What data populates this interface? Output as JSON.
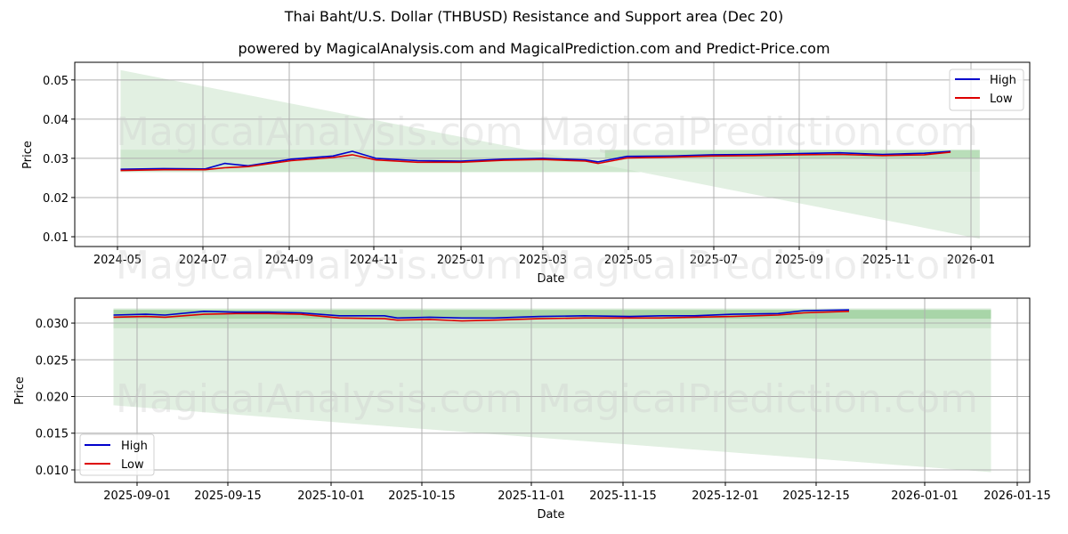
{
  "header": {
    "title": "Thai Baht/U.S. Dollar (THBUSD) Resistance and Support area (Dec 20)",
    "subtitle": "powered by MagicalAnalysis.com and MagicalPrediction.com and Predict-Price.com"
  },
  "watermarks": [
    "MagicalAnalysis.com",
    "MagicalPrediction.com"
  ],
  "colors": {
    "high": "#0000cc",
    "low": "#dd0000",
    "band_light": "#e2f0e2",
    "band_mid": "#bfe0bf",
    "band_dark": "#8fc98f",
    "grid": "#b0b0b0"
  },
  "chart_data": [
    {
      "type": "line",
      "title": "Thai Baht/U.S. Dollar (THBUSD) Resistance and Support area (Dec 20)",
      "xlabel": "Date",
      "ylabel": "Price",
      "ylim": [
        0.0075,
        0.0545
      ],
      "yticks": [
        "0.01",
        "0.02",
        "0.03",
        "0.04",
        "0.05"
      ],
      "yvals": [
        0.01,
        0.02,
        0.03,
        0.04,
        0.05
      ],
      "xticks": [
        "2024-05",
        "2024-07",
        "2024-09",
        "2024-11",
        "2025-01",
        "2025-03",
        "2025-05",
        "2025-07",
        "2025-09",
        "2025-11",
        "2026-01"
      ],
      "grid": true,
      "legend_position": "upper right",
      "legend": [
        "High",
        "Low"
      ],
      "x": [
        "2024-05",
        "2024-06",
        "2024-07",
        "2024-07-15",
        "2024-08",
        "2024-09",
        "2024-10",
        "2024-10-15",
        "2024-11",
        "2024-12",
        "2025-01",
        "2025-02",
        "2025-03",
        "2025-04",
        "2025-04-10",
        "2025-05",
        "2025-06",
        "2025-07",
        "2025-08",
        "2025-09",
        "2025-10",
        "2025-11",
        "2025-12",
        "2025-12-20"
      ],
      "series": [
        {
          "name": "High",
          "values": [
            0.0272,
            0.0274,
            0.0273,
            0.0287,
            0.0281,
            0.0298,
            0.0306,
            0.0318,
            0.03,
            0.0294,
            0.0293,
            0.0298,
            0.03,
            0.0296,
            0.0291,
            0.0305,
            0.0306,
            0.0309,
            0.031,
            0.0312,
            0.0314,
            0.031,
            0.0313,
            0.0318
          ]
        },
        {
          "name": "Low",
          "values": [
            0.0269,
            0.0271,
            0.0271,
            0.0276,
            0.0279,
            0.0294,
            0.0302,
            0.0309,
            0.0296,
            0.029,
            0.029,
            0.0295,
            0.0297,
            0.0293,
            0.0287,
            0.0301,
            0.0303,
            0.0306,
            0.0307,
            0.0309,
            0.031,
            0.0307,
            0.0309,
            0.0316
          ]
        }
      ],
      "bands": {
        "outer_upper": {
          "x": [
            "2024-05",
            "2026-01-10"
          ],
          "values": [
            0.0525,
            0.0095
          ]
        },
        "support_area": [
          0.0265,
          0.0322
        ]
      }
    },
    {
      "type": "line",
      "xlabel": "Date",
      "ylabel": "Price",
      "ylim": [
        0.0083,
        0.0334
      ],
      "yticks": [
        "0.010",
        "0.015",
        "0.020",
        "0.025",
        "0.030"
      ],
      "yvals": [
        0.01,
        0.015,
        0.02,
        0.025,
        0.03
      ],
      "xticks": [
        "2025-09-01",
        "2025-09-15",
        "2025-10-01",
        "2025-10-15",
        "2025-11-01",
        "2025-11-15",
        "2025-12-01",
        "2025-12-15",
        "2026-01-01",
        "2026-01-15"
      ],
      "grid": true,
      "legend_position": "lower left",
      "legend": [
        "High",
        "Low"
      ],
      "x": [
        "2025-08-27",
        "2025-09-01",
        "2025-09-04",
        "2025-09-10",
        "2025-09-15",
        "2025-09-20",
        "2025-09-25",
        "2025-10-01",
        "2025-10-08",
        "2025-10-10",
        "2025-10-15",
        "2025-10-20",
        "2025-10-25",
        "2025-11-01",
        "2025-11-08",
        "2025-11-15",
        "2025-11-20",
        "2025-11-25",
        "2025-12-01",
        "2025-12-08",
        "2025-12-12",
        "2025-12-19"
      ],
      "series": [
        {
          "name": "High",
          "values": [
            0.0311,
            0.0312,
            0.0311,
            0.0316,
            0.0315,
            0.0315,
            0.0314,
            0.031,
            0.031,
            0.0307,
            0.0308,
            0.0307,
            0.0307,
            0.0309,
            0.031,
            0.0309,
            0.031,
            0.031,
            0.0312,
            0.0313,
            0.0317,
            0.0318
          ]
        },
        {
          "name": "Low",
          "values": [
            0.0308,
            0.0309,
            0.0308,
            0.0312,
            0.0313,
            0.0313,
            0.0312,
            0.0307,
            0.0306,
            0.0304,
            0.0305,
            0.0303,
            0.0304,
            0.0306,
            0.0307,
            0.0307,
            0.0307,
            0.0308,
            0.0309,
            0.0311,
            0.0314,
            0.0316
          ]
        }
      ],
      "bands": {
        "outer": {
          "x": [
            "2025-08-27",
            "2026-01-10"
          ],
          "upper": [
            0.0318,
            0.0318
          ],
          "lower": [
            0.0188,
            0.0097
          ]
        },
        "mid": [
          0.0293,
          0.032
        ],
        "core": [
          0.0306,
          0.0318
        ]
      }
    }
  ]
}
